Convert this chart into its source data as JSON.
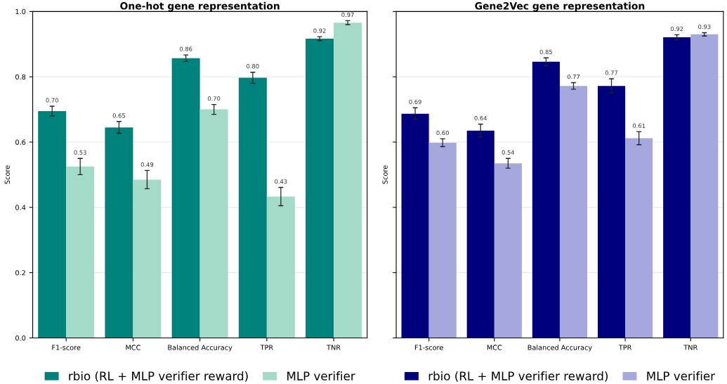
{
  "chart_data": [
    {
      "type": "bar",
      "title": "One-hot gene representation",
      "ylabel": "Score",
      "categories": [
        "F1-score",
        "MCC",
        "Balanced Accuracy",
        "TPR",
        "TNR"
      ],
      "series": [
        {
          "name": "rbio (RL + MLP verifier reward)",
          "color": "#00827c",
          "values": [
            0.695,
            0.645,
            0.857,
            0.797,
            0.917
          ],
          "value_labels": [
            "0.70",
            "0.65",
            "0.86",
            "0.80",
            "0.92"
          ],
          "errors": [
            0.015,
            0.018,
            0.01,
            0.017,
            0.006
          ]
        },
        {
          "name": "MLP verifier",
          "color": "#a4dac8",
          "values": [
            0.525,
            0.485,
            0.7,
            0.433,
            0.966
          ],
          "value_labels": [
            "0.53",
            "0.49",
            "0.70",
            "0.43",
            "0.97"
          ],
          "errors": [
            0.025,
            0.028,
            0.015,
            0.028,
            0.006
          ]
        }
      ],
      "ylim": [
        0,
        1.0
      ],
      "yticks": [
        {
          "value": 0,
          "label": "0.0"
        },
        0.2,
        0.4,
        0.6,
        0.8,
        {
          "value": 1,
          "label": "1.0"
        }
      ],
      "grid": "y",
      "legend": "bottom"
    },
    {
      "type": "bar",
      "title": "Gene2Vec gene representation",
      "ylabel": "Score",
      "categories": [
        "F1-score",
        "MCC",
        "Balanced Accuracy",
        "TPR",
        "TNR"
      ],
      "series": [
        {
          "name": "rbio (RL + MLP verifier reward)",
          "color": "#00007f",
          "values": [
            0.687,
            0.635,
            0.846,
            0.772,
            0.921
          ],
          "value_labels": [
            "0.69",
            "0.64",
            "0.85",
            "0.77",
            "0.92"
          ],
          "errors": [
            0.018,
            0.02,
            0.012,
            0.022,
            0.008
          ]
        },
        {
          "name": "MLP verifier",
          "color": "#a4a8dc",
          "values": [
            0.598,
            0.535,
            0.772,
            0.612,
            0.93
          ],
          "value_labels": [
            "0.60",
            "0.54",
            "0.77",
            "0.61",
            "0.93"
          ],
          "errors": [
            0.012,
            0.015,
            0.01,
            0.02,
            0.005
          ]
        }
      ],
      "ylim": [
        0,
        1.0
      ],
      "yticks": [
        {
          "value": 0,
          "label": null
        },
        {
          "value": 0.2,
          "label": null
        },
        {
          "value": 0.4,
          "label": null
        },
        {
          "value": 0.6,
          "label": null
        },
        {
          "value": 0.8,
          "label": null
        },
        {
          "value": 1,
          "label": null
        }
      ],
      "grid": "y",
      "legend": "bottom",
      "tick_labels": "x"
    }
  ]
}
